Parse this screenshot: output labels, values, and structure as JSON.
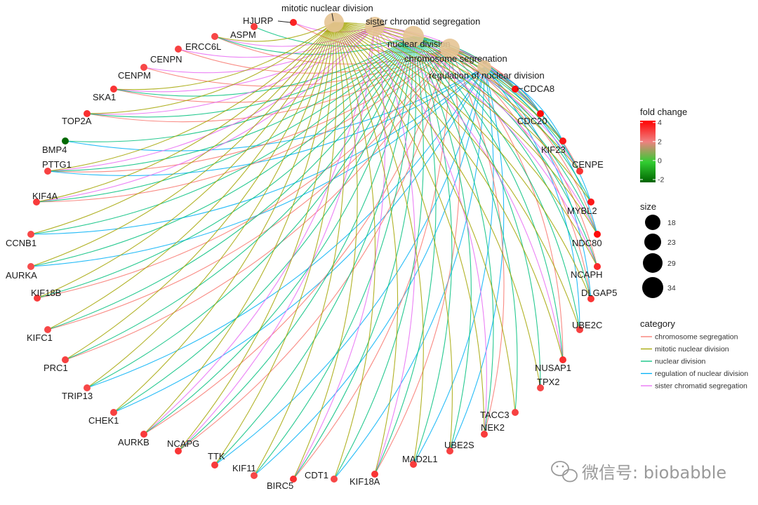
{
  "terms": [
    {
      "name": "mitotic nuclear division",
      "color": "#A3A500",
      "size": 29
    },
    {
      "name": "sister chromatid segregation",
      "color": "#E76BF3",
      "size": 29
    },
    {
      "name": "nuclear division",
      "color": "#00BF7D",
      "size": 34
    },
    {
      "name": "chromosome segregation",
      "color": "#F8766D",
      "size": 29
    },
    {
      "name": "regulation of nuclear division",
      "color": "#00B0F6",
      "size": 18
    }
  ],
  "genes": [
    {
      "name": "HJURP",
      "fc": 3.6,
      "terms": [
        3,
        1
      ]
    },
    {
      "name": "ASPM",
      "fc": 3.2,
      "terms": [
        2
      ]
    },
    {
      "name": "ERCC6L",
      "fc": 3.0,
      "terms": [
        3,
        1,
        0,
        2
      ]
    },
    {
      "name": "CENPN",
      "fc": 3.1,
      "terms": [
        3,
        1
      ]
    },
    {
      "name": "CENPM",
      "fc": 3.0,
      "terms": [
        3,
        1
      ]
    },
    {
      "name": "SKA1",
      "fc": 3.3,
      "terms": [
        3,
        1,
        0,
        2
      ]
    },
    {
      "name": "TOP2A",
      "fc": 3.4,
      "terms": [
        3,
        1,
        0,
        2
      ]
    },
    {
      "name": "BMP4",
      "fc": -2.2,
      "terms": [
        4,
        2
      ]
    },
    {
      "name": "PTTG1",
      "fc": 3.1,
      "terms": [
        3,
        1,
        0,
        2,
        4
      ]
    },
    {
      "name": "KIF4A",
      "fc": 3.2,
      "terms": [
        3,
        1,
        0,
        2
      ]
    },
    {
      "name": "CCNB1",
      "fc": 3.0,
      "terms": [
        0,
        2,
        4
      ]
    },
    {
      "name": "AURKA",
      "fc": 2.9,
      "terms": [
        0,
        2,
        4
      ]
    },
    {
      "name": "KIF18B",
      "fc": 3.2,
      "terms": [
        3,
        0,
        2
      ]
    },
    {
      "name": "KIFC1",
      "fc": 3.0,
      "terms": [
        3,
        0,
        2
      ]
    },
    {
      "name": "PRC1",
      "fc": 3.1,
      "terms": [
        3,
        0,
        2
      ]
    },
    {
      "name": "TRIP13",
      "fc": 3.0,
      "terms": [
        0,
        2,
        4
      ]
    },
    {
      "name": "CHEK1",
      "fc": 3.1,
      "terms": [
        0,
        2,
        4
      ]
    },
    {
      "name": "AURKB",
      "fc": 3.2,
      "terms": [
        3,
        1,
        0,
        2
      ]
    },
    {
      "name": "NCAPG",
      "fc": 3.3,
      "terms": [
        3,
        1,
        0,
        2
      ]
    },
    {
      "name": "TTK",
      "fc": 3.2,
      "terms": [
        0,
        2,
        4
      ]
    },
    {
      "name": "KIF11",
      "fc": 3.0,
      "terms": [
        0,
        2,
        4
      ]
    },
    {
      "name": "BIRC5",
      "fc": 3.4,
      "terms": [
        3,
        1,
        0,
        2
      ]
    },
    {
      "name": "CDT1",
      "fc": 3.0,
      "terms": [
        0,
        2,
        4
      ]
    },
    {
      "name": "KIF18A",
      "fc": 3.3,
      "terms": [
        3,
        1,
        0,
        2
      ]
    },
    {
      "name": "MAD2L1",
      "fc": 3.2,
      "terms": [
        0,
        2,
        4
      ]
    },
    {
      "name": "UBE2S",
      "fc": 3.1,
      "terms": [
        0,
        2,
        4
      ]
    },
    {
      "name": "NEK2",
      "fc": 3.2,
      "terms": [
        3,
        1,
        0,
        2
      ]
    },
    {
      "name": "TACC3",
      "fc": 3.1,
      "terms": [
        0,
        2
      ]
    },
    {
      "name": "TPX2",
      "fc": 3.0,
      "terms": [
        0,
        2
      ]
    },
    {
      "name": "NUSAP1",
      "fc": 3.4,
      "terms": [
        3,
        1,
        0,
        2
      ]
    },
    {
      "name": "UBE2C",
      "fc": 3.1,
      "terms": [
        0,
        2,
        4
      ]
    },
    {
      "name": "DLGAP5",
      "fc": 3.3,
      "terms": [
        3,
        0,
        2,
        4
      ]
    },
    {
      "name": "NCAPH",
      "fc": 3.5,
      "terms": [
        3,
        1,
        0,
        2
      ]
    },
    {
      "name": "NDC80",
      "fc": 4.0,
      "terms": [
        3,
        1,
        0,
        2,
        4
      ]
    },
    {
      "name": "MYBL2",
      "fc": 3.8,
      "terms": [
        0,
        2,
        4
      ]
    },
    {
      "name": "CENPE",
      "fc": 3.3,
      "terms": [
        3,
        1,
        0,
        2
      ]
    },
    {
      "name": "KIF23",
      "fc": 3.8,
      "terms": [
        0,
        2,
        4
      ]
    },
    {
      "name": "CDC20",
      "fc": 4.0,
      "terms": [
        3,
        1,
        0,
        2,
        4
      ]
    },
    {
      "name": "CDCA8",
      "fc": 4.0,
      "terms": [
        3,
        1,
        0,
        2
      ]
    }
  ],
  "legend_fold": {
    "title": "fold change",
    "ticks": [
      "4",
      "2",
      "0",
      "-2"
    ],
    "values": [
      4,
      2,
      0,
      -2
    ],
    "min": -2.3,
    "max": 4.2,
    "colors": [
      "#006400",
      "#32CD32",
      "#F08080",
      "#FF0000"
    ]
  },
  "legend_size": {
    "title": "size",
    "values": [
      18,
      23,
      29,
      34
    ],
    "labels": [
      "18",
      "23",
      "29",
      "34"
    ]
  },
  "legend_category": {
    "title": "category",
    "items": [
      "chromosome segregation",
      "mitotic nuclear division",
      "nuclear division",
      "regulation of nuclear division",
      "sister chromatid segregation"
    ],
    "colors": [
      "#F8766D",
      "#A3A500",
      "#00BF7D",
      "#00B0F6",
      "#E76BF3"
    ]
  },
  "watermark": {
    "text": "微信号: biobabble",
    "icon": "wechat-icon"
  }
}
